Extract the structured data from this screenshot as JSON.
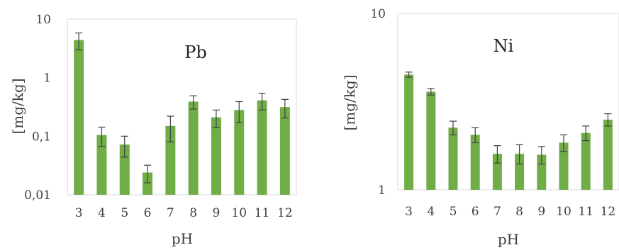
{
  "chart_data": [
    {
      "type": "bar",
      "title": "Pb",
      "xlabel": "pH",
      "ylabel": "[mg/kg]",
      "yscale": "log",
      "ylim": [
        0.01,
        10
      ],
      "yticks": [
        "0,01",
        "0,1",
        "1",
        "10"
      ],
      "categories": [
        "3",
        "4",
        "5",
        "6",
        "7",
        "8",
        "9",
        "10",
        "11",
        "12"
      ],
      "values": [
        4.4,
        0.105,
        0.072,
        0.024,
        0.15,
        0.39,
        0.21,
        0.28,
        0.41,
        0.315
      ],
      "errors": [
        1.4,
        0.038,
        0.028,
        0.008,
        0.07,
        0.1,
        0.07,
        0.11,
        0.13,
        0.11
      ],
      "color": "#70ad47",
      "grid": false
    },
    {
      "type": "bar",
      "title": "Ni",
      "xlabel": "pH",
      "ylabel": "[mg/kg]",
      "yscale": "log",
      "ylim": [
        1,
        10
      ],
      "yticks": [
        "1",
        "10"
      ],
      "categories": [
        "3",
        "4",
        "5",
        "6",
        "7",
        "8",
        "9",
        "10",
        "11",
        "12"
      ],
      "values": [
        4.5,
        3.6,
        2.25,
        2.05,
        1.6,
        1.6,
        1.58,
        1.85,
        2.1,
        2.5
      ],
      "errors": [
        0.15,
        0.15,
        0.2,
        0.2,
        0.18,
        0.2,
        0.18,
        0.2,
        0.2,
        0.2
      ],
      "color": "#70ad47",
      "grid": false
    }
  ]
}
